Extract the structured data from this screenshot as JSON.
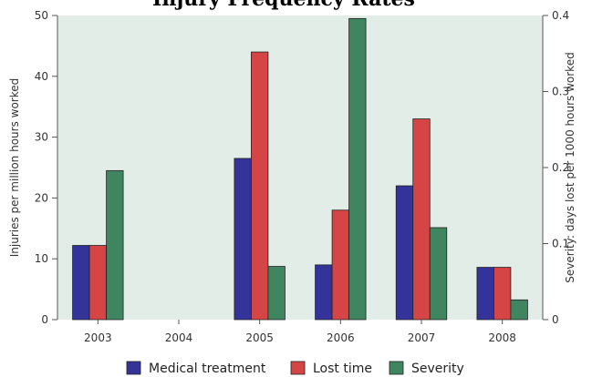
{
  "chart_data": {
    "type": "bar",
    "title": "Injury Frequency Rates",
    "categories": [
      "2003",
      "2004",
      "2005",
      "2006",
      "2007",
      "2008"
    ],
    "series": [
      {
        "name": "Medical treatment",
        "axis": "left",
        "color": "#333399",
        "values": [
          12.2,
          0,
          26.5,
          9,
          22,
          8.6
        ]
      },
      {
        "name": "Lost time",
        "axis": "left",
        "color": "#d64545",
        "values": [
          12.2,
          0,
          44,
          18,
          33,
          8.6
        ]
      },
      {
        "name": "Severity",
        "axis": "right",
        "color": "#3f8560",
        "values": [
          0.196,
          0,
          0.07,
          0.396,
          0.121,
          0.026
        ]
      }
    ],
    "ylabel": "Injuries per million hours worked",
    "ylim": [
      0,
      50
    ],
    "yticks": [
      "0",
      "10",
      "20",
      "30",
      "40",
      "50"
    ],
    "y2label": "Severity: days lost per 1000 hours worked",
    "y2lim": [
      0,
      0.4
    ],
    "y2ticks": [
      "0",
      "0.1",
      "0.2",
      "0.3",
      "0.4"
    ],
    "plot_background": "#e3ede8",
    "grid": false,
    "legend_position": "bottom"
  }
}
